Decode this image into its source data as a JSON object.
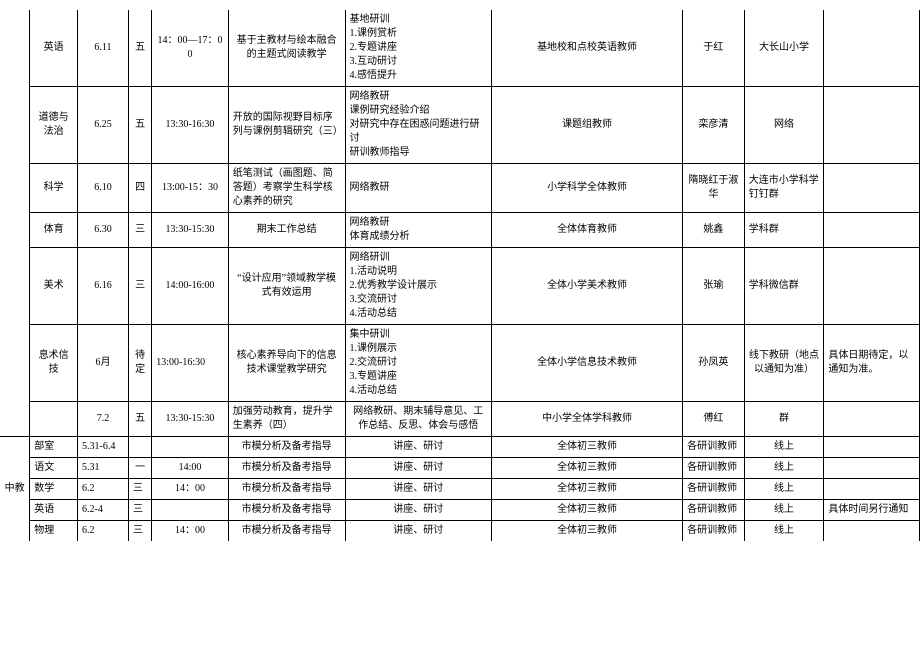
{
  "rows": [
    {
      "c1": "英语",
      "c2": "6.11",
      "c3": "五",
      "c4": "14：00—17：00",
      "c5": "基于主教材与绘本融合的主题式阅读教学",
      "c6": "基地研训\n1.课例赏析\n2.专题讲座\n3.互动研讨\n4.感悟提升",
      "c7": "基地校和点校英语教师",
      "c8": "于红",
      "c9": "大长山小学",
      "c10": ""
    },
    {
      "c1": "道德与法治",
      "c2": "6.25",
      "c3": "五",
      "c4": "13:30-16:30",
      "c5": "开放的国际视野目标序列与课例剪辑研究（三）",
      "c6": "网络教研\n课例研究经验介绍\n对研究中存在困惑问题进行研讨\n研训教师指导",
      "c7": "课题组教师",
      "c8": "栾彦清",
      "c9": "网络",
      "c10": ""
    },
    {
      "c1": "科学",
      "c2": "6.10",
      "c3": "四",
      "c4": "13:00-15：30",
      "c5": "纸笔测试（画图题、简答题）考察学生科学核心素养的研究",
      "c6": "网络教研",
      "c7": "小学科学全体教师",
      "c8": "隋晓红于淑华",
      "c9": "大连市小学科学钉钉群",
      "c10": ""
    },
    {
      "c1": "体育",
      "c2": "6.30",
      "c3": "三",
      "c4": "13:30-15:30",
      "c5": "期末工作总结",
      "c6": "网络教研\n体育成绩分析",
      "c7": "全体体育教师",
      "c8": "姚鑫",
      "c9": "学科群",
      "c10": ""
    },
    {
      "c1": "美术",
      "c2": "6.16",
      "c3": "三",
      "c4": "14:00-16:00",
      "c5": "“设计应用”领域教学模式有效运用",
      "c6": "网络研训\n1.活动说明\n2.优秀教学设计展示\n3.交流研讨\n4.活动总结",
      "c7": "全体小学美术教师",
      "c8": "张瑜",
      "c9": "学科微信群",
      "c10": ""
    },
    {
      "c1": "息术信技",
      "c2": "6月",
      "c3": "待定",
      "c4": "13:00-16:30",
      "c5": "核心素养导向下的信息技术课堂教学研究",
      "c6": "集中研训\n1.课例展示\n2.交流研讨\n3.专题讲座\n4.活动总结",
      "c7": "全体小学信息技术教师",
      "c8": "孙凤英",
      "c9": "线下教研（地点以通知为准）",
      "c10": "具体日期待定，以通知为准。"
    },
    {
      "c1": "",
      "c2": "7.2",
      "c3": "五",
      "c4": "13:30-15:30",
      "c5": "加强劳动教育，提升学生素养（四）",
      "c6": "网络教研、期末辅导意见、工作总结、反思、体会与感悟",
      "c7": "中小学全体学科教师",
      "c8": "傅红",
      "c9": "群",
      "c10": ""
    },
    {
      "section": "中教",
      "c1": "部室",
      "c2": "5.31-6.4",
      "c3": "",
      "c4": "",
      "c5": "市模分析及备考指导",
      "c6": "讲座、研讨",
      "c7": "全体初三教师",
      "c8": "各研训教师",
      "c9": "线上",
      "c10": ""
    },
    {
      "c1": "语文",
      "c2": "5.31",
      "c3": "一",
      "c4": "14:00",
      "c5": "市模分析及备考指导",
      "c6": "讲座、研讨",
      "c7": "全体初三教师",
      "c8": "各研训教师",
      "c9": "线上",
      "c10": ""
    },
    {
      "c1": "数学",
      "c2": "6.2",
      "c3": "三",
      "c4": "14：00",
      "c5": "市模分析及备考指导",
      "c6": "讲座、研讨",
      "c7": "全体初三教师",
      "c8": "各研训教师",
      "c9": "线上",
      "c10": ""
    },
    {
      "c1": "英语",
      "c2": "6.2-4",
      "c3": "三",
      "c4": "",
      "c5": "市模分析及备考指导",
      "c6": "讲座、研讨",
      "c7": "全体初三教师",
      "c8": "各研训教师",
      "c9": "线上",
      "c10": "具体时间另行通知"
    },
    {
      "c1": "物理",
      "c2": "6.2",
      "c3": "三",
      "c4": "14：00",
      "c5": "市模分析及备考指导",
      "c6": "讲座、研讨",
      "c7": "全体初三教师",
      "c8": "各研训教师",
      "c9": "线上",
      "c10": ""
    }
  ]
}
